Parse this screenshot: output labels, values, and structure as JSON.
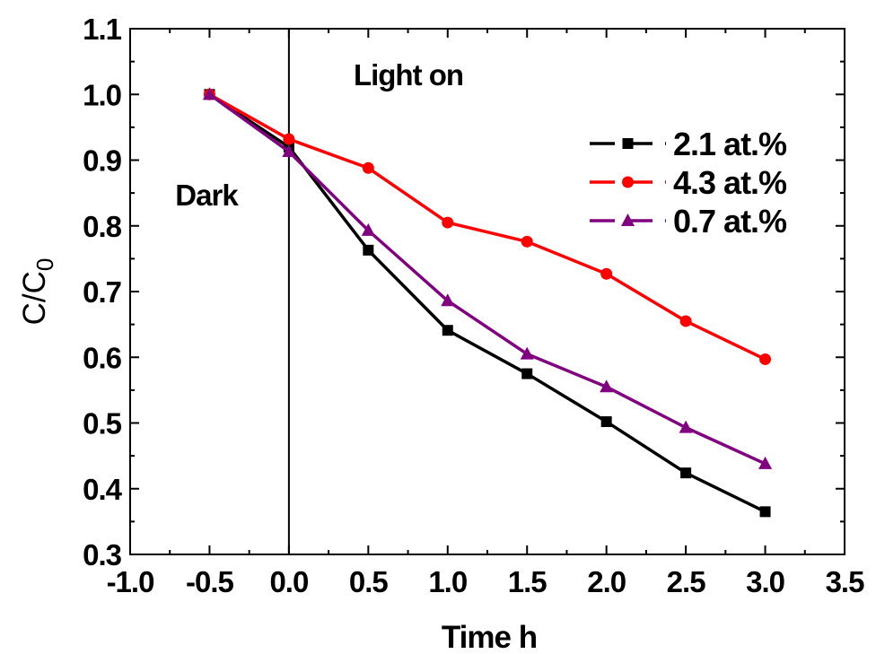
{
  "chart_data": {
    "type": "line",
    "title": "",
    "xlabel": "Time h",
    "ylabel_main": "C/C",
    "ylabel_sub": "0",
    "xlim": [
      -1.0,
      3.5
    ],
    "ylim": [
      0.3,
      1.1
    ],
    "x_ticks": [
      "-1.0",
      "-0.5",
      "0.0",
      "0.5",
      "1.0",
      "1.5",
      "2.0",
      "2.5",
      "3.0",
      "3.5"
    ],
    "y_ticks": [
      "0.3",
      "0.4",
      "0.5",
      "0.6",
      "0.7",
      "0.8",
      "0.9",
      "1.0",
      "1.1"
    ],
    "grid": false,
    "legend_position": "top-right",
    "vertical_line_x": 0.0,
    "annotations": {
      "light_on": "Light on",
      "dark": "Dark"
    },
    "x": [
      -0.5,
      0.0,
      0.5,
      1.0,
      1.5,
      2.0,
      2.5,
      3.0
    ],
    "series": [
      {
        "name": "2.1 at.%",
        "color": "#000000",
        "marker": "square",
        "values": [
          1.0,
          0.92,
          0.763,
          0.641,
          0.575,
          0.502,
          0.424,
          0.365
        ]
      },
      {
        "name": "4.3 at.%",
        "color": "#ff0000",
        "marker": "circle",
        "values": [
          1.0,
          0.932,
          0.888,
          0.805,
          0.776,
          0.727,
          0.655,
          0.597
        ]
      },
      {
        "name": "0.7 at.%",
        "color": "#800080",
        "marker": "triangle",
        "values": [
          1.0,
          0.913,
          0.793,
          0.686,
          0.605,
          0.555,
          0.493,
          0.438
        ]
      }
    ]
  }
}
